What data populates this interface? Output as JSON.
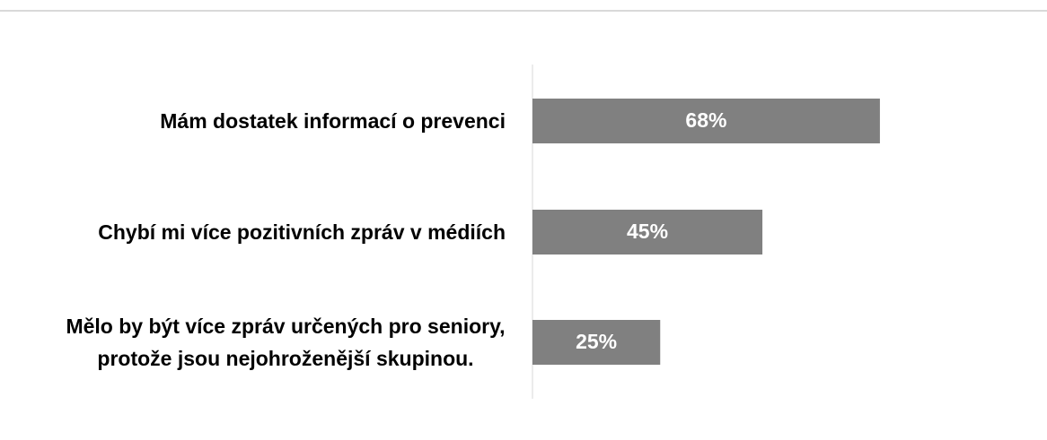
{
  "chart_data": {
    "type": "bar",
    "orientation": "horizontal",
    "categories": [
      "Mám dostatek informací o prevenci",
      "Chybí mi více pozitivních zpráv v médiích",
      "Mělo by být více zpráv určených pro seniory, protože jsou nejohroženější skupinou."
    ],
    "values": [
      68,
      45,
      25
    ],
    "value_labels": [
      "68%",
      "45%",
      "25%"
    ],
    "color": "#808080"
  }
}
